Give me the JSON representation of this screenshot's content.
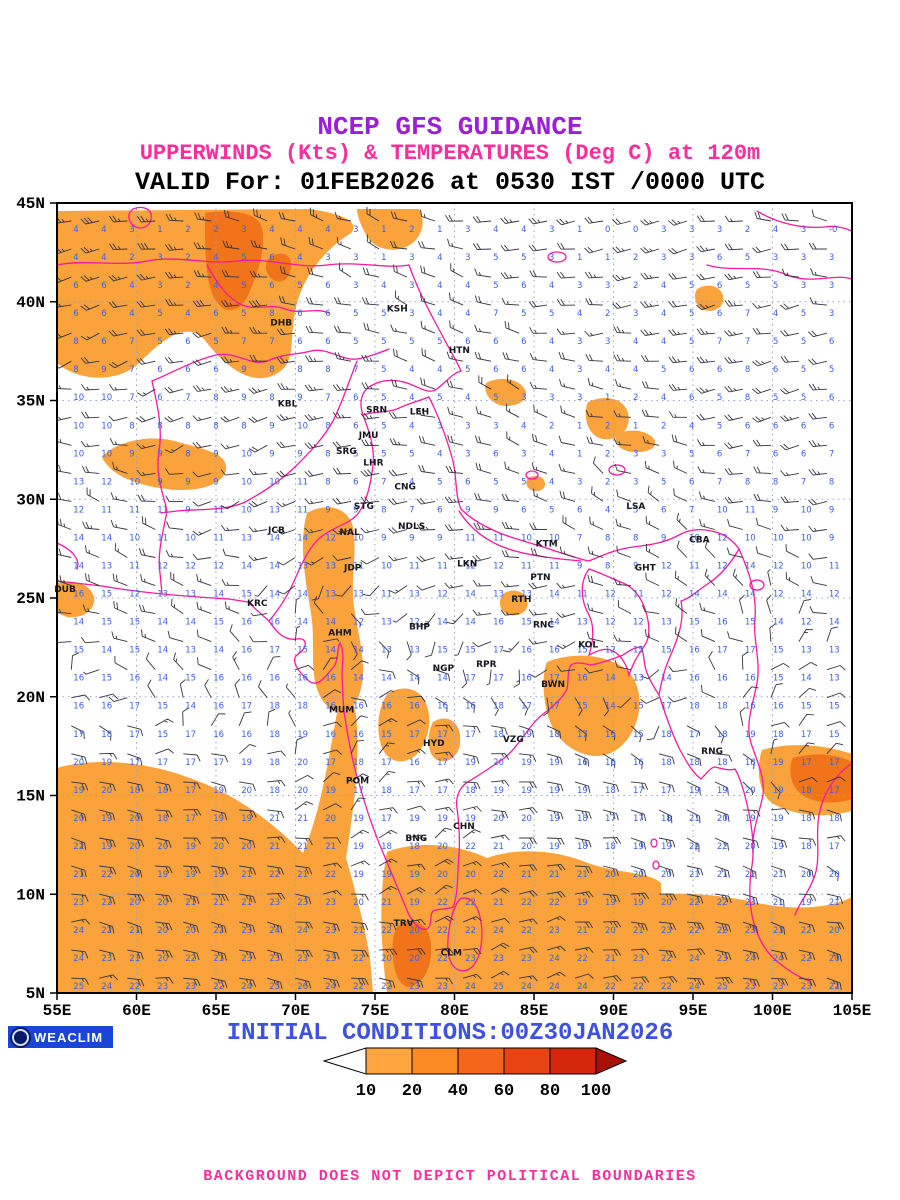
{
  "header": {
    "line1": "NCEP GFS GUIDANCE",
    "line2": "UPPERWINDS (Kts) & TEMPERATURES (Deg C) at 120m",
    "line3": "VALID For: 01FEB2026 at 0530 IST /0000 UTC"
  },
  "map": {
    "lat_ticks": [
      "45N",
      "40N",
      "35N",
      "30N",
      "25N",
      "20N",
      "15N",
      "10N",
      "5N"
    ],
    "lon_ticks": [
      "55E",
      "60E",
      "65E",
      "70E",
      "75E",
      "80E",
      "85E",
      "90E",
      "95E",
      "100E",
      "105E"
    ],
    "lon_range": [
      55,
      105
    ],
    "lat_range": [
      5,
      45
    ],
    "line_color": "#fb18a0",
    "grid_color": "#8fa2d8",
    "shade_light": "#FAA23C",
    "shade_dark": "#F1731A",
    "temp_color": "#3b60e4",
    "barb_color": "#34343f",
    "city_color": "#15151f",
    "cities": [
      {
        "label": "DHB",
        "lon": 69.1,
        "lat": 38.8
      },
      {
        "label": "KSH",
        "lon": 76.4,
        "lat": 39.5
      },
      {
        "label": "HTN",
        "lon": 80.3,
        "lat": 37.4
      },
      {
        "label": "KBL",
        "lon": 69.5,
        "lat": 34.7
      },
      {
        "label": "SRN",
        "lon": 75.1,
        "lat": 34.4
      },
      {
        "label": "LEH",
        "lon": 77.8,
        "lat": 34.3
      },
      {
        "label": "JMU",
        "lon": 74.6,
        "lat": 33.1
      },
      {
        "label": "SRG",
        "lon": 73.2,
        "lat": 32.3
      },
      {
        "label": "LHR",
        "lon": 74.9,
        "lat": 31.7
      },
      {
        "label": "CNG",
        "lon": 76.9,
        "lat": 30.5
      },
      {
        "label": "STG",
        "lon": 74.3,
        "lat": 29.5
      },
      {
        "label": "JCB",
        "lon": 68.8,
        "lat": 28.3
      },
      {
        "label": "NAL",
        "lon": 73.4,
        "lat": 28.2
      },
      {
        "label": "NDLS",
        "lon": 77.3,
        "lat": 28.5
      },
      {
        "label": "KTM",
        "lon": 85.8,
        "lat": 27.6
      },
      {
        "label": "LSA",
        "lon": 91.4,
        "lat": 29.5
      },
      {
        "label": "CBA",
        "lon": 95.4,
        "lat": 27.8
      },
      {
        "label": "DUB",
        "lon": 55.5,
        "lat": 25.3
      },
      {
        "label": "JDP",
        "lon": 73.6,
        "lat": 26.4
      },
      {
        "label": "LKN",
        "lon": 80.8,
        "lat": 26.6
      },
      {
        "label": "PTN",
        "lon": 85.4,
        "lat": 25.9
      },
      {
        "label": "GHT",
        "lon": 92.0,
        "lat": 26.4
      },
      {
        "label": "KRC",
        "lon": 67.6,
        "lat": 24.6
      },
      {
        "label": "RTH",
        "lon": 84.2,
        "lat": 24.8
      },
      {
        "label": "AHM",
        "lon": 72.8,
        "lat": 23.1
      },
      {
        "label": "BHP",
        "lon": 77.8,
        "lat": 23.4
      },
      {
        "label": "RNC",
        "lon": 85.6,
        "lat": 23.5
      },
      {
        "label": "KOL",
        "lon": 88.4,
        "lat": 22.5
      },
      {
        "label": "NGP",
        "lon": 79.3,
        "lat": 21.3
      },
      {
        "label": "RPR",
        "lon": 82.0,
        "lat": 21.5
      },
      {
        "label": "BWN",
        "lon": 86.2,
        "lat": 20.5
      },
      {
        "label": "MUM",
        "lon": 72.9,
        "lat": 19.2
      },
      {
        "label": "HYD",
        "lon": 78.7,
        "lat": 17.5
      },
      {
        "label": "VZG",
        "lon": 83.7,
        "lat": 17.7
      },
      {
        "label": "RNG",
        "lon": 96.2,
        "lat": 17.1
      },
      {
        "label": "POM",
        "lon": 73.9,
        "lat": 15.6
      },
      {
        "label": "CHN",
        "lon": 80.6,
        "lat": 13.3
      },
      {
        "label": "BNG",
        "lon": 77.6,
        "lat": 12.7
      },
      {
        "label": "TRV",
        "lon": 76.8,
        "lat": 8.4
      },
      {
        "label": "CLM",
        "lon": 79.8,
        "lat": 6.9
      }
    ],
    "field_units": {
      "wind": "Kts",
      "temperature": "Deg C",
      "level": "120m"
    }
  },
  "legend": {
    "values": [
      "10",
      "20",
      "40",
      "60",
      "80",
      "100"
    ],
    "segment_colors": [
      "#FFA640",
      "#FB8A24",
      "#F6661A",
      "#E84313",
      "#D4260C"
    ],
    "left_arrow_color": "#FFFFFF",
    "right_arrow_color": "#A81005"
  },
  "footer": {
    "logo_text": "WEACLIM",
    "initial_conditions": "INITIAL CONDITIONS:00Z30JAN2026",
    "disclaimer": "BACKGROUND DOES NOT DEPICT POLITICAL BOUNDARIES"
  }
}
